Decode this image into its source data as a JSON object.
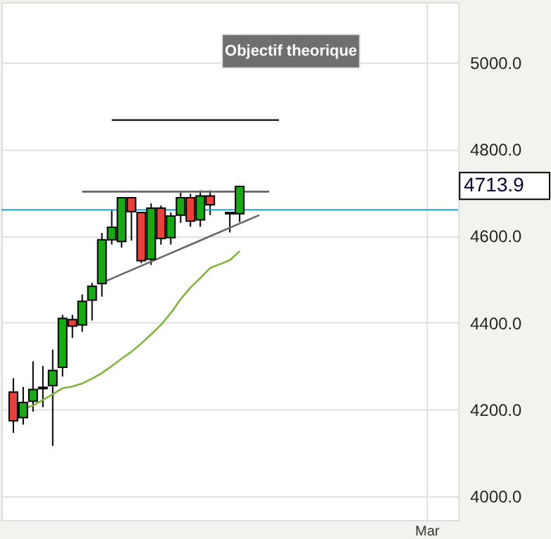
{
  "chart_data": {
    "type": "candlestick",
    "categories": [
      null,
      null,
      null,
      null,
      null,
      null,
      null,
      null,
      null,
      null,
      null,
      null,
      null,
      null,
      null,
      null,
      null,
      null,
      null,
      null,
      null,
      null,
      null,
      null,
      null,
      null,
      null,
      null,
      null,
      null,
      null,
      null,
      null,
      null,
      null,
      null,
      null,
      null,
      null,
      null,
      null,
      null,
      null,
      null,
      null
    ],
    "ohlc": [
      [
        4240,
        4272,
        4146,
        4174
      ],
      [
        4181,
        4252,
        4165,
        4216
      ],
      [
        4219,
        4311,
        4195,
        4246
      ],
      [
        4248,
        4300,
        4205,
        4251
      ],
      [
        4255,
        4338,
        4116,
        4290
      ],
      [
        4297,
        4418,
        4276,
        4410
      ],
      [
        4407,
        4418,
        4365,
        4392
      ],
      [
        4395,
        4465,
        4379,
        4449
      ],
      [
        4452,
        4492,
        4405,
        4484
      ],
      [
        4490,
        4607,
        4460,
        4591
      ],
      [
        4591,
        4659,
        4580,
        4620
      ],
      [
        4587,
        4688,
        4573,
        4688
      ],
      [
        4688,
        4688,
        4589,
        4656
      ],
      [
        4654,
        4654,
        4537,
        4543
      ],
      [
        4546,
        4675,
        4533,
        4664
      ],
      [
        4664,
        4670,
        4580,
        4594
      ],
      [
        4596,
        4654,
        4580,
        4646
      ],
      [
        4648,
        4700,
        4630,
        4688
      ],
      [
        4688,
        4697,
        4621,
        4634
      ],
      [
        4637,
        4705,
        4621,
        4692
      ],
      [
        4692,
        4705,
        4648,
        4672
      ],
      null,
      [
        4651,
        4654,
        4608,
        4654
      ],
      [
        4651,
        4716,
        4632,
        4713.9
      ],
      null,
      null,
      null,
      null,
      null,
      null,
      null,
      null,
      null,
      null,
      null,
      null,
      null,
      null,
      null,
      null,
      null,
      null,
      null,
      null,
      null
    ],
    "colors": [
      "#e8413c",
      "#18a818",
      "#18a818",
      "#18a818",
      "#18a818",
      "#18a818",
      "#e8413c",
      "#18a818",
      "#18a818",
      "#18a818",
      "#18a818",
      "#18a818",
      "#e8413c",
      "#e8413c",
      "#18a818",
      "#e8413c",
      "#18a818",
      "#18a818",
      "#e8413c",
      "#18a818",
      "#e8413c",
      null,
      "#18a818",
      "#18a818",
      null,
      null,
      null,
      null,
      null,
      null,
      null,
      null,
      null,
      null,
      null,
      null,
      null,
      null,
      null,
      null,
      null,
      null,
      null,
      null,
      null
    ],
    "series": [
      {
        "type": "line",
        "color": "#7cb53a",
        "values": [
          null,
          4201,
          4209,
          4222,
          4235,
          4249,
          4253,
          4260,
          4271,
          4284,
          4300,
          4317,
          4333,
          4352,
          4373,
          4395,
          4422,
          4454,
          4481,
          4503,
          4526,
          4535,
          4544,
          4565,
          null,
          null,
          null,
          null,
          null,
          null,
          null,
          null,
          null,
          null,
          null,
          null,
          null,
          null,
          null,
          null,
          null,
          null,
          null,
          null,
          null
        ]
      },
      {
        "type": "line",
        "color": "#666666",
        "values": [
          null,
          null,
          null,
          null,
          null,
          null,
          null,
          4702,
          null,
          null,
          null,
          null,
          null,
          null,
          null,
          null,
          null,
          null,
          null,
          null,
          null,
          null,
          null,
          null,
          null,
          null,
          4702,
          null,
          null,
          null,
          null,
          null,
          null,
          null,
          null,
          null,
          null,
          null,
          null,
          null,
          null,
          null,
          null,
          null,
          null
        ]
      },
      {
        "type": "line",
        "color": "#666666",
        "values": [
          null,
          null,
          null,
          null,
          null,
          null,
          null,
          null,
          null,
          4492,
          null,
          null,
          null,
          null,
          null,
          null,
          null,
          null,
          null,
          null,
          null,
          null,
          null,
          null,
          null,
          4648,
          null,
          null,
          null,
          null,
          null,
          null,
          null,
          null,
          null,
          null,
          null,
          null,
          null,
          null,
          null,
          null,
          null,
          null,
          null
        ]
      },
      {
        "type": "line",
        "color": "#333333",
        "values": [
          null,
          null,
          null,
          null,
          null,
          null,
          null,
          null,
          null,
          null,
          4867,
          null,
          null,
          null,
          null,
          null,
          null,
          null,
          null,
          null,
          null,
          null,
          null,
          null,
          null,
          null,
          null,
          4867,
          null,
          null,
          null,
          null,
          null,
          null,
          null,
          null,
          null,
          null,
          null,
          null,
          null,
          null,
          null,
          null,
          null
        ]
      }
    ],
    "ref_lines": [
      {
        "axis": "y",
        "value": 4660,
        "color": "#1ba1e2"
      }
    ],
    "annotations": [
      "Objectif theorique",
      "4713.9",
      "Mar"
    ],
    "ylim": [
      3945,
      5139
    ],
    "yticks": [
      {
        "value": 4000,
        "label": "4000.0"
      },
      {
        "value": 4200,
        "label": "4200.0"
      },
      {
        "value": 4400,
        "label": "4400.0"
      },
      {
        "value": 4600,
        "label": "4600.0"
      },
      {
        "value": 4800,
        "label": "4800.0"
      },
      {
        "value": 5000,
        "label": "5000.0"
      }
    ],
    "grid": true
  }
}
